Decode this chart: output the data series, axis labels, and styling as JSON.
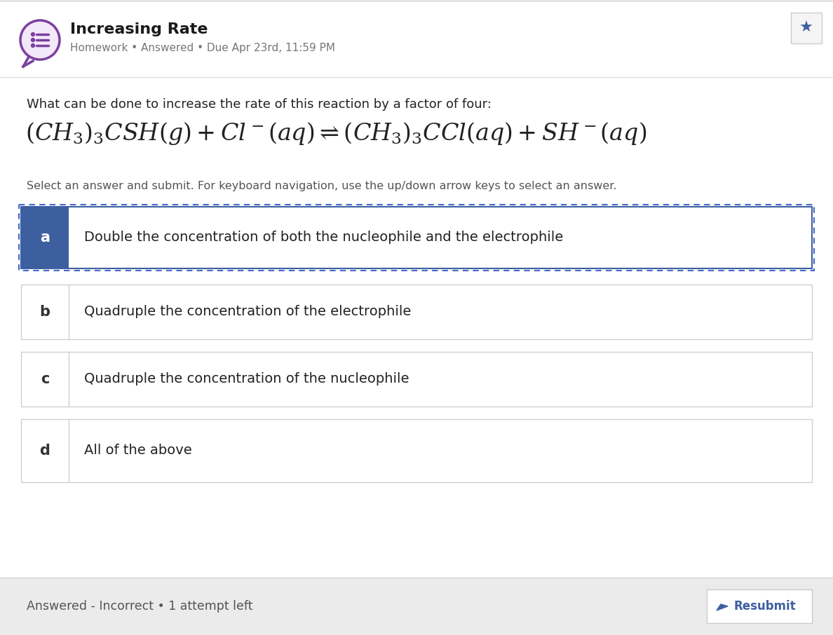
{
  "title": "Increasing Rate",
  "subtitle": "Homework • Answered • Due Apr 23rd, 11:59 PM",
  "question": "What can be done to increase the rate of this reaction by a factor of four:",
  "equation_mathtext": "$(CH_3)_3CSH(g) + Cl^-(aq) \\rightleftharpoons (CH_3)_3CCl(aq) + SH^-(aq)$",
  "instruction": "Select an answer and submit. For keyboard navigation, use the up/down arrow keys to select an answer.",
  "options": [
    {
      "label": "a",
      "text": "Double the concentration of both the nucleophile and the electrophile",
      "selected": true
    },
    {
      "label": "b",
      "text": "Quadruple the concentration of the electrophile",
      "selected": false
    },
    {
      "label": "c",
      "text": "Quadruple the concentration of the nucleophile",
      "selected": false
    },
    {
      "label": "d",
      "text": "All of the above",
      "selected": false
    }
  ],
  "footer_text": "Answered - Incorrect • 1 attempt left",
  "resubmit_text": "Resubmit",
  "bg_color": "#ffffff",
  "footer_bg": "#ebebeb",
  "header_border": "#e0e0e0",
  "selected_label_bg": "#3d5fa0",
  "selected_border_solid": "#3d5fa0",
  "selected_border_dashed": "#4466cc",
  "unselected_border": "#d0d0d0",
  "title_color": "#1a1a1a",
  "subtitle_color": "#777777",
  "label_color_selected": "#ffffff",
  "label_color_unselected": "#333333",
  "text_color": "#222222",
  "question_color": "#222222",
  "instruction_color": "#555555",
  "icon_bg": "#f3e8f8",
  "icon_border": "#7b3fa0",
  "icon_line_color": "#7b3fa0",
  "resubmit_btn_bg": "#ffffff",
  "resubmit_btn_border": "#cccccc",
  "resubmit_text_color": "#3d5fa0",
  "star_box_bg": "#f5f5f5",
  "star_box_border": "#cccccc",
  "star_color": "#3d5fa0",
  "footer_text_color": "#555555"
}
